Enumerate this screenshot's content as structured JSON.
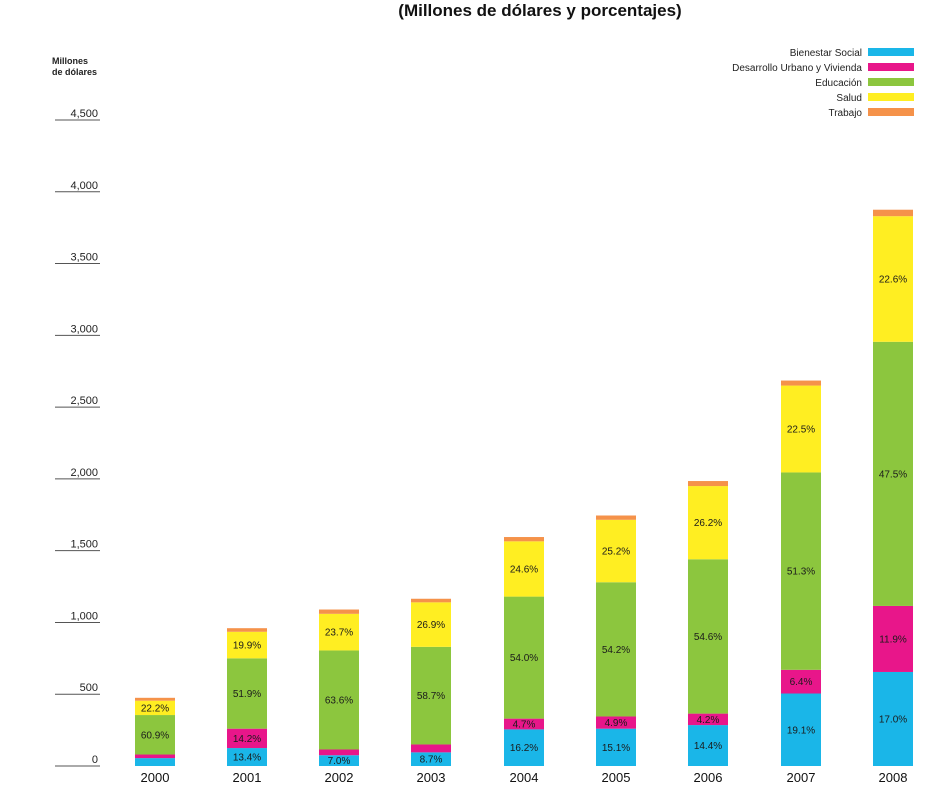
{
  "chart_data": {
    "type": "bar",
    "stacked": true,
    "title": "(Millones de dólares y porcentajes)",
    "ylabel": "Millones\nde dólares",
    "xlabel": "",
    "ylim": [
      0,
      4500
    ],
    "yticks": [
      "0",
      "500",
      "1,000",
      "1,500",
      "2,000",
      "2,500",
      "3,000",
      "3,500",
      "4,000",
      "4,500"
    ],
    "ytick_values": [
      0,
      500,
      1000,
      1500,
      2000,
      2500,
      3000,
      3500,
      4000,
      4500
    ],
    "categories": [
      "2000",
      "2001",
      "2002",
      "2003",
      "2004",
      "2005",
      "2006",
      "2007",
      "2008"
    ],
    "legend_position": "top-right",
    "series": [
      {
        "name": "Bienestar Social",
        "color": "#1ab6e8",
        "values": [
          55,
          125,
          75,
          95,
          255,
          260,
          285,
          505,
          655
        ],
        "labels": [
          "",
          "13.4%",
          "7.0%",
          "8.7%",
          "16.2%",
          "15.1%",
          "14.4%",
          "19.1%",
          "17.0%"
        ]
      },
      {
        "name": "Desarrollo Urbano y Vivienda",
        "color": "#e8168a",
        "values": [
          25,
          135,
          40,
          55,
          75,
          85,
          80,
          165,
          460
        ],
        "labels": [
          "",
          "14.2%",
          "",
          "",
          "4.7%",
          "4.9%",
          "4.2%",
          "6.4%",
          "11.9%"
        ]
      },
      {
        "name": "Educación",
        "color": "#8cc63e",
        "values": [
          275,
          490,
          690,
          680,
          850,
          935,
          1075,
          1375,
          1840
        ],
        "labels": [
          "60.9%",
          "51.9%",
          "63.6%",
          "58.7%",
          "54.0%",
          "54.2%",
          "54.6%",
          "51.3%",
          "47.5%"
        ]
      },
      {
        "name": "Salud",
        "color": "#ffee22",
        "values": [
          100,
          185,
          255,
          310,
          385,
          435,
          510,
          605,
          875
        ],
        "labels": [
          "22.2%",
          "19.9%",
          "23.7%",
          "26.9%",
          "24.6%",
          "25.2%",
          "26.2%",
          "22.5%",
          "22.6%"
        ]
      },
      {
        "name": "Trabajo",
        "color": "#f5924a",
        "values": [
          20,
          25,
          30,
          25,
          30,
          30,
          35,
          35,
          45
        ],
        "labels": [
          "",
          "",
          "",
          "",
          "",
          "",
          "",
          "",
          ""
        ]
      }
    ]
  }
}
